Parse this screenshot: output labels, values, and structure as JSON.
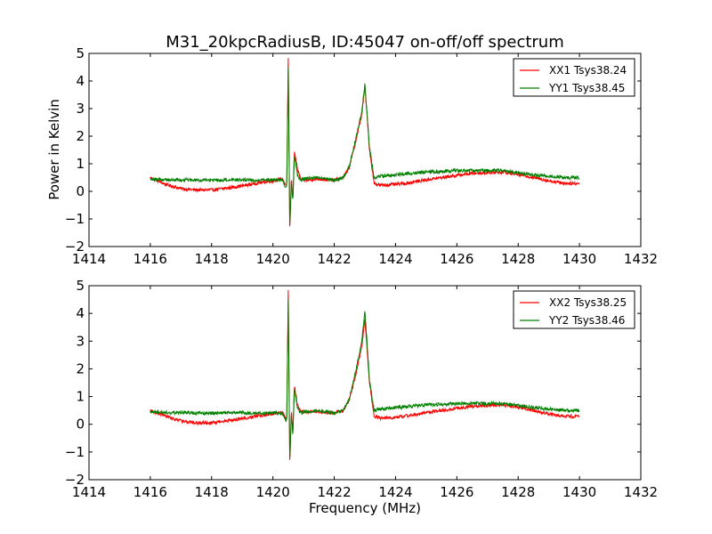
{
  "chart_data": [
    {
      "type": "line",
      "title": "M31_20kpcRadiusB, ID:45047 on-off/off spectrum",
      "xlabel": "",
      "ylabel": "Power in Kelvin",
      "xlim": [
        1414,
        1432
      ],
      "ylim": [
        -2,
        5
      ],
      "xticks": [
        1414,
        1416,
        1418,
        1420,
        1422,
        1424,
        1426,
        1428,
        1430,
        1432
      ],
      "yticks": [
        -2,
        -1,
        0,
        1,
        2,
        3,
        4,
        5
      ],
      "legend_position": "top-right",
      "series": [
        {
          "name": "XX1 Tsys38.24",
          "color": "#ff0000",
          "x": [
            1416.0,
            1416.5,
            1417.0,
            1417.5,
            1418.0,
            1418.5,
            1419.0,
            1419.5,
            1420.0,
            1420.3,
            1420.45,
            1420.5,
            1420.55,
            1420.6,
            1420.65,
            1420.7,
            1420.8,
            1420.9,
            1421.0,
            1421.5,
            1422.0,
            1422.3,
            1422.5,
            1422.7,
            1422.9,
            1423.0,
            1423.15,
            1423.3,
            1423.5,
            1424.0,
            1424.5,
            1425.0,
            1425.5,
            1426.0,
            1426.5,
            1427.0,
            1427.5,
            1428.0,
            1428.5,
            1429.0,
            1429.5,
            1430.0
          ],
          "y": [
            0.5,
            0.25,
            0.1,
            0.05,
            0.05,
            0.12,
            0.2,
            0.3,
            0.38,
            0.45,
            0.2,
            4.8,
            -1.5,
            0.5,
            -0.3,
            1.5,
            0.8,
            0.45,
            0.4,
            0.45,
            0.4,
            0.5,
            0.9,
            1.8,
            2.8,
            3.8,
            1.5,
            0.3,
            0.22,
            0.25,
            0.32,
            0.42,
            0.5,
            0.58,
            0.65,
            0.68,
            0.7,
            0.62,
            0.5,
            0.38,
            0.3,
            0.28
          ]
        },
        {
          "name": "YY1 Tsys38.45",
          "color": "#008000",
          "x": [
            1416.0,
            1416.5,
            1417.0,
            1417.5,
            1418.0,
            1418.5,
            1419.0,
            1419.5,
            1420.0,
            1420.3,
            1420.45,
            1420.5,
            1420.55,
            1420.6,
            1420.65,
            1420.7,
            1420.8,
            1420.9,
            1421.0,
            1421.5,
            1422.0,
            1422.3,
            1422.5,
            1422.7,
            1422.9,
            1423.0,
            1423.15,
            1423.3,
            1423.5,
            1424.0,
            1424.5,
            1425.0,
            1425.5,
            1426.0,
            1426.5,
            1427.0,
            1427.5,
            1428.0,
            1428.5,
            1429.0,
            1429.5,
            1430.0
          ],
          "y": [
            0.45,
            0.42,
            0.42,
            0.4,
            0.4,
            0.42,
            0.42,
            0.4,
            0.42,
            0.4,
            0.1,
            4.5,
            -1.4,
            0.4,
            -0.4,
            1.3,
            0.6,
            0.4,
            0.45,
            0.5,
            0.4,
            0.5,
            0.95,
            1.9,
            2.9,
            3.9,
            1.6,
            0.5,
            0.55,
            0.6,
            0.65,
            0.7,
            0.72,
            0.75,
            0.75,
            0.75,
            0.75,
            0.68,
            0.6,
            0.55,
            0.5,
            0.5
          ]
        }
      ]
    },
    {
      "type": "line",
      "title": "",
      "xlabel": "Frequency (MHz)",
      "ylabel": "",
      "xlim": [
        1414,
        1432
      ],
      "ylim": [
        -2,
        5
      ],
      "xticks": [
        1414,
        1416,
        1418,
        1420,
        1422,
        1424,
        1426,
        1428,
        1430,
        1432
      ],
      "yticks": [
        -2,
        -1,
        0,
        1,
        2,
        3,
        4,
        5
      ],
      "legend_position": "top-right",
      "series": [
        {
          "name": "XX2 Tsys38.25",
          "color": "#ff0000",
          "x": [
            1416.0,
            1416.5,
            1417.0,
            1417.5,
            1418.0,
            1418.5,
            1419.0,
            1419.5,
            1420.0,
            1420.3,
            1420.45,
            1420.5,
            1420.55,
            1420.6,
            1420.65,
            1420.7,
            1420.8,
            1420.9,
            1421.0,
            1421.5,
            1422.0,
            1422.3,
            1422.5,
            1422.7,
            1422.9,
            1423.0,
            1423.15,
            1423.3,
            1423.5,
            1424.0,
            1424.5,
            1425.0,
            1425.5,
            1426.0,
            1426.5,
            1427.0,
            1427.5,
            1428.0,
            1428.5,
            1429.0,
            1429.5,
            1430.0
          ],
          "y": [
            0.5,
            0.3,
            0.12,
            0.05,
            0.05,
            0.12,
            0.2,
            0.3,
            0.38,
            0.45,
            0.2,
            4.8,
            -1.5,
            0.5,
            -0.3,
            1.4,
            0.7,
            0.45,
            0.45,
            0.45,
            0.4,
            0.5,
            0.9,
            1.8,
            2.8,
            3.8,
            1.5,
            0.3,
            0.22,
            0.25,
            0.32,
            0.42,
            0.5,
            0.58,
            0.65,
            0.68,
            0.7,
            0.62,
            0.5,
            0.38,
            0.3,
            0.28
          ]
        },
        {
          "name": "YY2 Tsys38.46",
          "color": "#008000",
          "x": [
            1416.0,
            1416.5,
            1417.0,
            1417.5,
            1418.0,
            1418.5,
            1419.0,
            1419.5,
            1420.0,
            1420.3,
            1420.45,
            1420.5,
            1420.55,
            1420.6,
            1420.65,
            1420.7,
            1420.8,
            1420.9,
            1421.0,
            1421.5,
            1422.0,
            1422.3,
            1422.5,
            1422.7,
            1422.9,
            1423.0,
            1423.15,
            1423.3,
            1423.5,
            1424.0,
            1424.5,
            1425.0,
            1425.5,
            1426.0,
            1426.5,
            1427.0,
            1427.5,
            1428.0,
            1428.5,
            1429.0,
            1429.5,
            1430.0
          ],
          "y": [
            0.45,
            0.42,
            0.42,
            0.4,
            0.4,
            0.42,
            0.42,
            0.4,
            0.42,
            0.4,
            0.1,
            4.5,
            -1.4,
            0.4,
            -0.4,
            1.3,
            0.6,
            0.4,
            0.45,
            0.5,
            0.4,
            0.5,
            0.95,
            1.9,
            3.0,
            4.1,
            1.6,
            0.5,
            0.55,
            0.6,
            0.65,
            0.7,
            0.72,
            0.75,
            0.75,
            0.75,
            0.75,
            0.68,
            0.6,
            0.55,
            0.5,
            0.5
          ]
        }
      ]
    }
  ]
}
